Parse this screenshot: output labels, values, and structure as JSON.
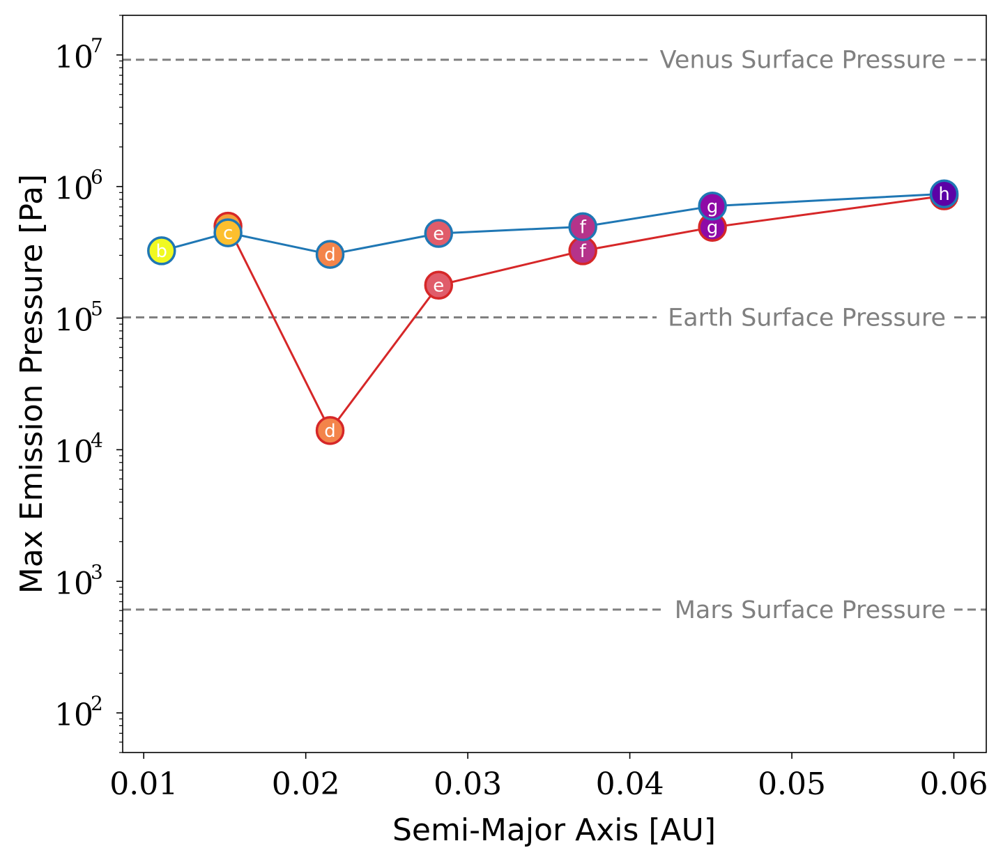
{
  "chart_data": {
    "type": "line",
    "title": "",
    "xlabel": "Semi-Major Axis [AU]",
    "ylabel": "Max Emission Pressure [Pa]",
    "xlim": [
      0.0087,
      0.062
    ],
    "ylim": [
      50,
      20000000
    ],
    "yscale": "log",
    "x_ticks": [
      {
        "value": 0.01,
        "label": "0.01"
      },
      {
        "value": 0.02,
        "label": "0.02"
      },
      {
        "value": 0.03,
        "label": "0.03"
      },
      {
        "value": 0.04,
        "label": "0.04"
      },
      {
        "value": 0.05,
        "label": "0.05"
      },
      {
        "value": 0.06,
        "label": "0.06"
      }
    ],
    "y_ticks": [
      {
        "value": 100,
        "base": "10",
        "exp": "2"
      },
      {
        "value": 1000,
        "base": "10",
        "exp": "3"
      },
      {
        "value": 10000,
        "base": "10",
        "exp": "4"
      },
      {
        "value": 100000,
        "base": "10",
        "exp": "5"
      },
      {
        "value": 1000000,
        "base": "10",
        "exp": "6"
      },
      {
        "value": 10000000,
        "base": "10",
        "exp": "7"
      }
    ],
    "reference_lines": [
      {
        "label": "Venus Surface Pressure",
        "value": 9200000,
        "color": "#808080"
      },
      {
        "label": "Earth Surface Pressure",
        "value": 101325,
        "color": "#808080"
      },
      {
        "label": "Mars Surface Pressure",
        "value": 610,
        "color": "#808080"
      }
    ],
    "series": [
      {
        "name": "red series",
        "color": "#d62728",
        "points": [
          {
            "label": "c",
            "x": 0.0152,
            "y": 500000,
            "fill": "#f5a03a"
          },
          {
            "label": "d",
            "x": 0.0215,
            "y": 14000,
            "fill": "#f3844a"
          },
          {
            "label": "e",
            "x": 0.0282,
            "y": 178000,
            "fill": "#e05c6a"
          },
          {
            "label": "f",
            "x": 0.0371,
            "y": 325000,
            "fill": "#b5338a"
          },
          {
            "label": "g",
            "x": 0.0451,
            "y": 490000,
            "fill": "#8e0aa6"
          },
          {
            "label": "h",
            "x": 0.0594,
            "y": 850000,
            "fill": "#5c01a6"
          }
        ]
      },
      {
        "name": "blue series",
        "color": "#1f77b4",
        "points": [
          {
            "label": "b",
            "x": 0.0111,
            "y": 325000,
            "fill": "#f0f921"
          },
          {
            "label": "c",
            "x": 0.0152,
            "y": 445000,
            "fill": "#fdbf2e"
          },
          {
            "label": "d",
            "x": 0.0215,
            "y": 305000,
            "fill": "#f3844a"
          },
          {
            "label": "e",
            "x": 0.0282,
            "y": 440000,
            "fill": "#e05c6a"
          },
          {
            "label": "f",
            "x": 0.0371,
            "y": 495000,
            "fill": "#b5338a"
          },
          {
            "label": "g",
            "x": 0.0451,
            "y": 710000,
            "fill": "#8e0aa6"
          },
          {
            "label": "h",
            "x": 0.0594,
            "y": 880000,
            "fill": "#5c01a6"
          }
        ]
      }
    ]
  }
}
